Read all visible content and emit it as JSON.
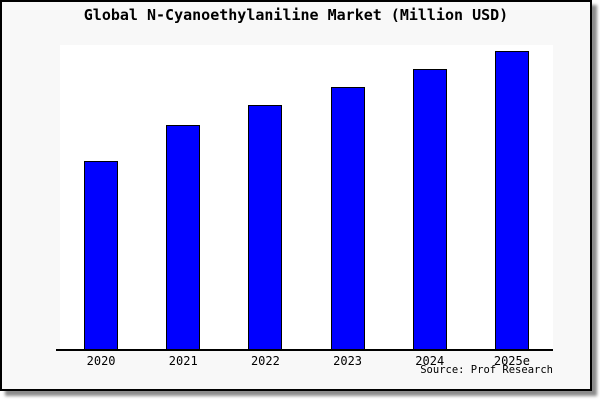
{
  "figure": {
    "title": "Global N-Cyanoethylaniline Market (Million USD)",
    "source": "Source: Prof Research",
    "background_color": "#f8f8f8",
    "plot_background_color": "#ffffff",
    "frame_color": "#000000"
  },
  "chart_data": {
    "type": "bar",
    "title": "Global N-Cyanoethylaniline Market (Million USD)",
    "categories": [
      "2020",
      "2021",
      "2022",
      "2023",
      "2024",
      "2025e"
    ],
    "values": [
      63,
      75,
      82,
      88,
      94,
      100
    ],
    "values_note": "y-axis has no ticks or labels; values estimated from bar heights relative to tallest bar (2025e = 100)",
    "xlabel": "",
    "ylabel": "",
    "ylim": [
      0,
      102
    ],
    "grid": false,
    "legend": "none",
    "bar_color": "#0000ff",
    "bar_edge_color": "#000000",
    "source": "Source: Prof Research"
  }
}
